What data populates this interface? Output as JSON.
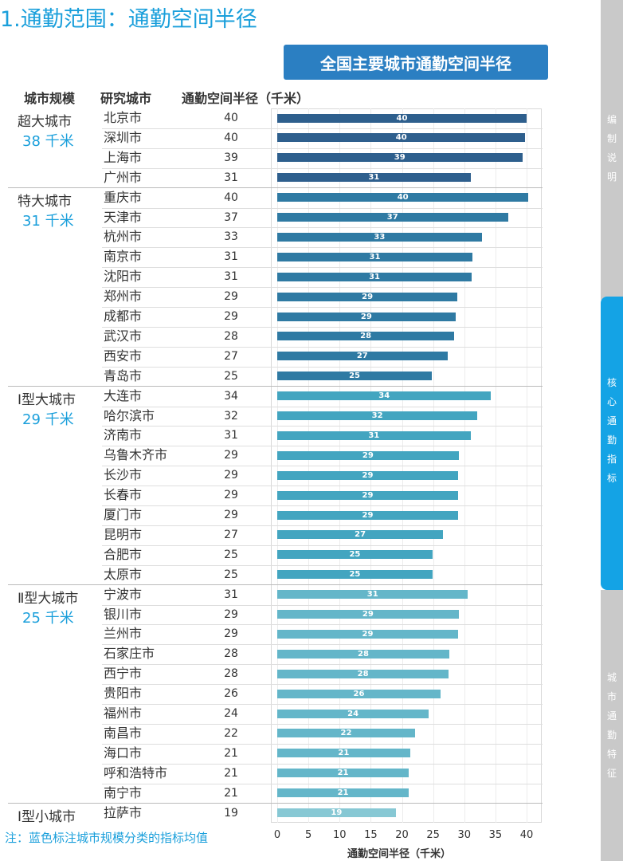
{
  "page": {
    "title": "1.通勤范围：通勤空间半径",
    "note": "注：蓝色标注城市规模分类的指标均值"
  },
  "sidebar": {
    "top": "编制说明",
    "middle": "核心通勤指标",
    "bottom": "城市通勤特征"
  },
  "headers": {
    "scale": "城市规模",
    "city": "研究城市",
    "radius": "通勤空间半径（千米）"
  },
  "colors": {
    "super": "#2e5f8d",
    "mega": "#2f7aa3",
    "type1": "#43a5c0",
    "type2": "#64b6c9",
    "small": "#87c8d4",
    "accent": "#1a9fdb"
  },
  "chart_data": {
    "type": "bar",
    "orientation": "horizontal",
    "title": "全国主要城市通勤空间半径",
    "xlabel": "通勤空间半径（千米）",
    "xlim": [
      0,
      40
    ],
    "xticks": [
      "0",
      "5",
      "10",
      "15",
      "20",
      "25",
      "30",
      "35",
      "40"
    ],
    "groups": [
      {
        "name": "超大城市",
        "avg": "38 千米",
        "color_key": "super",
        "cities": [
          {
            "city": "北京市",
            "value": 40,
            "bar": 40.0
          },
          {
            "city": "深圳市",
            "value": 40,
            "bar": 39.8
          },
          {
            "city": "上海市",
            "value": 39,
            "bar": 39.3
          },
          {
            "city": "广州市",
            "value": 31,
            "bar": 31.0
          }
        ]
      },
      {
        "name": "特大城市",
        "avg": "31 千米",
        "color_key": "mega",
        "cities": [
          {
            "city": "重庆市",
            "value": 40,
            "bar": 40.3
          },
          {
            "city": "天津市",
            "value": 37,
            "bar": 37.0
          },
          {
            "city": "杭州市",
            "value": 33,
            "bar": 32.8
          },
          {
            "city": "南京市",
            "value": 31,
            "bar": 31.3
          },
          {
            "city": "沈阳市",
            "value": 31,
            "bar": 31.2
          },
          {
            "city": "郑州市",
            "value": 29,
            "bar": 28.9
          },
          {
            "city": "成都市",
            "value": 29,
            "bar": 28.6
          },
          {
            "city": "武汉市",
            "value": 28,
            "bar": 28.4
          },
          {
            "city": "西安市",
            "value": 27,
            "bar": 27.3
          },
          {
            "city": "青岛市",
            "value": 25,
            "bar": 24.8
          }
        ]
      },
      {
        "name": "Ⅰ型大城市",
        "avg": "29 千米",
        "color_key": "type1",
        "cities": [
          {
            "city": "大连市",
            "value": 34,
            "bar": 34.3
          },
          {
            "city": "哈尔滨市",
            "value": 32,
            "bar": 32.1
          },
          {
            "city": "济南市",
            "value": 31,
            "bar": 31.0
          },
          {
            "city": "乌鲁木齐市",
            "value": 29,
            "bar": 29.1
          },
          {
            "city": "长沙市",
            "value": 29,
            "bar": 29.0
          },
          {
            "city": "长春市",
            "value": 29,
            "bar": 29.0
          },
          {
            "city": "厦门市",
            "value": 29,
            "bar": 29.0
          },
          {
            "city": "昆明市",
            "value": 27,
            "bar": 26.6
          },
          {
            "city": "合肥市",
            "value": 25,
            "bar": 24.9
          },
          {
            "city": "太原市",
            "value": 25,
            "bar": 24.9
          }
        ]
      },
      {
        "name": "Ⅱ型大城市",
        "avg": "25 千米",
        "color_key": "type2",
        "cities": [
          {
            "city": "宁波市",
            "value": 31,
            "bar": 30.6
          },
          {
            "city": "银川市",
            "value": 29,
            "bar": 29.1
          },
          {
            "city": "兰州市",
            "value": 29,
            "bar": 29.0
          },
          {
            "city": "石家庄市",
            "value": 28,
            "bar": 27.6
          },
          {
            "city": "西宁市",
            "value": 28,
            "bar": 27.5
          },
          {
            "city": "贵阳市",
            "value": 26,
            "bar": 26.2
          },
          {
            "city": "福州市",
            "value": 24,
            "bar": 24.3
          },
          {
            "city": "南昌市",
            "value": 22,
            "bar": 22.1
          },
          {
            "city": "海口市",
            "value": 21,
            "bar": 21.3
          },
          {
            "city": "呼和浩特市",
            "value": 21,
            "bar": 21.1
          },
          {
            "city": "南宁市",
            "value": 21,
            "bar": 21.1
          }
        ]
      },
      {
        "name": "Ⅰ型小城市",
        "avg": "",
        "color_key": "small",
        "cities": [
          {
            "city": "拉萨市",
            "value": 19,
            "bar": 19.0
          }
        ]
      }
    ]
  }
}
